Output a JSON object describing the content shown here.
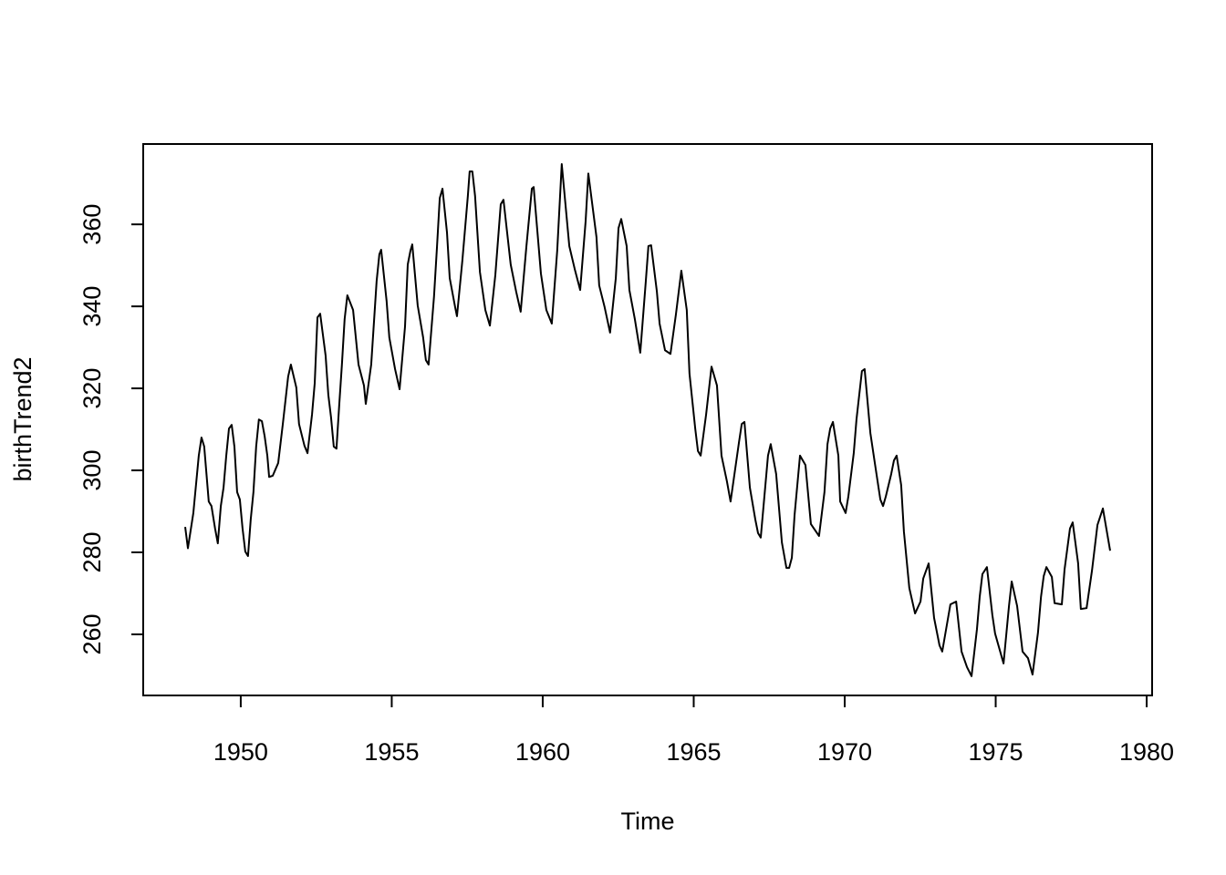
{
  "chart_data": {
    "type": "line",
    "x_label": "Time",
    "y_label": "birthTrend2",
    "color": "#000000",
    "xlim": [
      1946.77,
      1980.18
    ],
    "ylim": [
      245.1,
      379.6
    ],
    "xticks": [
      1950,
      1955,
      1960,
      1965,
      1970,
      1975,
      1980
    ],
    "yticks": [
      260,
      280,
      300,
      320,
      340,
      360
    ],
    "x": [
      1948.16,
      1948.25,
      1948.43,
      1948.61,
      1948.7,
      1948.79,
      1948.94,
      1949.03,
      1949.15,
      1949.24,
      1949.34,
      1949.43,
      1949.52,
      1949.61,
      1949.7,
      1949.79,
      1949.88,
      1949.97,
      1950.06,
      1950.15,
      1950.24,
      1950.33,
      1950.42,
      1950.51,
      1950.6,
      1950.7,
      1950.79,
      1950.88,
      1950.94,
      1951.06,
      1951.24,
      1951.39,
      1951.57,
      1951.66,
      1951.84,
      1951.93,
      1952.11,
      1952.21,
      1952.36,
      1952.45,
      1952.54,
      1952.63,
      1952.81,
      1952.9,
      1952.99,
      1953.08,
      1953.17,
      1953.26,
      1953.35,
      1953.44,
      1953.53,
      1953.72,
      1953.9,
      1954.08,
      1954.14,
      1954.32,
      1954.5,
      1954.59,
      1954.65,
      1954.83,
      1954.92,
      1955.11,
      1955.26,
      1955.44,
      1955.53,
      1955.62,
      1955.68,
      1955.86,
      1956.04,
      1956.13,
      1956.22,
      1956.4,
      1956.5,
      1956.59,
      1956.68,
      1956.83,
      1956.92,
      1957.1,
      1957.16,
      1957.34,
      1957.52,
      1957.58,
      1957.67,
      1957.76,
      1957.92,
      1958.1,
      1958.25,
      1958.43,
      1958.61,
      1958.7,
      1958.94,
      1959.12,
      1959.27,
      1959.46,
      1959.64,
      1959.7,
      1959.94,
      1960.12,
      1960.3,
      1960.48,
      1960.63,
      1960.88,
      1961.06,
      1961.24,
      1961.42,
      1961.51,
      1961.78,
      1961.87,
      1962.05,
      1962.23,
      1962.42,
      1962.51,
      1962.6,
      1962.78,
      1962.87,
      1963.05,
      1963.23,
      1963.41,
      1963.5,
      1963.59,
      1963.78,
      1963.87,
      1964.05,
      1964.23,
      1964.41,
      1964.59,
      1964.77,
      1964.86,
      1965.05,
      1965.14,
      1965.23,
      1965.41,
      1965.59,
      1965.77,
      1965.92,
      1966.1,
      1966.22,
      1966.5,
      1966.59,
      1966.68,
      1966.86,
      1967.04,
      1967.13,
      1967.22,
      1967.46,
      1967.55,
      1967.73,
      1967.92,
      1968.07,
      1968.16,
      1968.25,
      1968.34,
      1968.52,
      1968.7,
      1968.88,
      1969.15,
      1969.33,
      1969.43,
      1969.52,
      1969.61,
      1969.79,
      1969.85,
      1970.03,
      1970.12,
      1970.3,
      1970.39,
      1970.57,
      1970.66,
      1970.85,
      1971.03,
      1971.18,
      1971.27,
      1971.36,
      1971.54,
      1971.63,
      1971.72,
      1971.87,
      1971.96,
      1972.14,
      1972.33,
      1972.51,
      1972.6,
      1972.78,
      1972.96,
      1973.14,
      1973.23,
      1973.5,
      1973.69,
      1973.87,
      1974.05,
      1974.2,
      1974.38,
      1974.47,
      1974.56,
      1974.71,
      1974.89,
      1974.98,
      1975.26,
      1975.44,
      1975.53,
      1975.71,
      1975.89,
      1976.07,
      1976.22,
      1976.4,
      1976.5,
      1976.59,
      1976.68,
      1976.86,
      1976.95,
      1977.19,
      1977.28,
      1977.46,
      1977.55,
      1977.73,
      1977.82,
      1978.01,
      1978.19,
      1978.37,
      1978.55,
      1978.79
    ],
    "values": [
      286.2,
      281,
      289.6,
      303.6,
      308,
      305.8,
      292.4,
      291.3,
      285.8,
      282.2,
      291.3,
      295.8,
      303.6,
      310.2,
      311.1,
      305.8,
      294.7,
      292.9,
      285.8,
      280.2,
      279.1,
      288,
      294.7,
      305.8,
      312.4,
      312,
      308.4,
      303.6,
      298.4,
      298.7,
      301.8,
      311.1,
      322.9,
      325.8,
      320.2,
      311.3,
      306,
      304.2,
      313.6,
      321.3,
      337.3,
      338.2,
      328,
      318.4,
      312.9,
      305.8,
      305.3,
      315.8,
      325.8,
      336.9,
      342.7,
      339.1,
      325.8,
      320.7,
      316.2,
      325.8,
      346.2,
      352.7,
      353.8,
      341.3,
      332.4,
      324.7,
      319.8,
      335.1,
      350.2,
      353.6,
      355.1,
      340.2,
      332.4,
      326.9,
      325.8,
      342.4,
      354.7,
      366.4,
      368.7,
      358,
      346.9,
      339.8,
      337.6,
      351.3,
      366.9,
      372.9,
      372.9,
      366.9,
      348.4,
      339.1,
      335.3,
      347.6,
      364.9,
      366,
      350.2,
      343.6,
      338.7,
      354.7,
      368.7,
      369.1,
      348,
      339.1,
      335.8,
      353.6,
      374.7,
      354.7,
      349.1,
      344,
      360.7,
      372.4,
      356.9,
      345.1,
      339.8,
      333.6,
      346.9,
      359.1,
      361.3,
      354.7,
      344,
      336.9,
      328.7,
      345.8,
      354.7,
      354.9,
      343.6,
      335.8,
      329.3,
      328.4,
      338,
      348.7,
      339.1,
      323.6,
      310.2,
      304.7,
      303.6,
      313.6,
      325.3,
      320.7,
      303.6,
      297.3,
      292.4,
      306.9,
      311.3,
      311.8,
      295.8,
      288,
      284.7,
      283.6,
      303.6,
      306.4,
      299.1,
      282.4,
      276.2,
      276.2,
      278.7,
      289.1,
      303.6,
      301.3,
      286.9,
      284,
      294.7,
      306.4,
      310.2,
      311.8,
      303.6,
      292.4,
      289.6,
      293.6,
      304.2,
      312.4,
      324.2,
      324.7,
      309.1,
      300.2,
      292.9,
      291.3,
      293.6,
      299.1,
      302.4,
      303.6,
      296.4,
      285.1,
      271.3,
      265.1,
      268,
      273.6,
      277.3,
      264,
      257.3,
      255.8,
      267.3,
      268,
      255.8,
      252,
      249.8,
      261.3,
      269.1,
      274.7,
      276.4,
      264.7,
      260.2,
      252.9,
      266.9,
      272.9,
      266.9,
      255.8,
      254.2,
      250.2,
      260.4,
      269.1,
      274.2,
      276.4,
      274,
      267.6,
      267.3,
      275.8,
      285.8,
      287.3,
      277.3,
      266.2,
      266.4,
      275.6,
      286.7,
      290.7,
      280.4
    ]
  }
}
